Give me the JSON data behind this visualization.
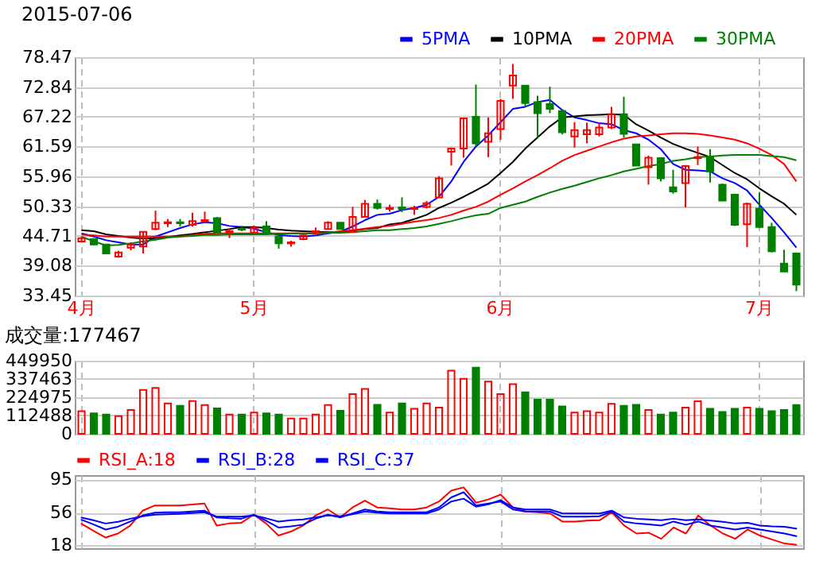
{
  "chart_data": [
    {
      "type": "candlestick",
      "title": "2015-07-06",
      "categories": [
        "4月",
        null,
        null,
        null,
        null,
        null,
        null,
        null,
        null,
        null,
        null,
        null,
        null,
        null,
        "5月",
        null,
        null,
        null,
        null,
        null,
        null,
        null,
        null,
        null,
        null,
        null,
        null,
        null,
        null,
        null,
        null,
        null,
        null,
        null,
        "6月",
        null,
        null,
        null,
        null,
        null,
        null,
        null,
        null,
        null,
        null,
        null,
        null,
        null,
        null,
        null,
        null,
        null,
        null,
        null,
        null,
        "7月",
        null,
        null,
        null
      ],
      "ohlc": [
        [
          43.64,
          44.5,
          43.5,
          44.3
        ],
        [
          44.1,
          44.3,
          43.0,
          43.1
        ],
        [
          43.1,
          43.2,
          41.3,
          41.4
        ],
        [
          40.8,
          41.9,
          40.6,
          41.6
        ],
        [
          42.5,
          43.5,
          42.0,
          43.1
        ],
        [
          42.7,
          45.6,
          41.4,
          45.5
        ],
        [
          46.0,
          49.5,
          45.8,
          47.2
        ],
        [
          47.1,
          47.9,
          46.4,
          47.3
        ],
        [
          47.3,
          47.9,
          46.5,
          47.1
        ],
        [
          46.8,
          49.1,
          46.5,
          47.5
        ],
        [
          47.5,
          49.3,
          47.2,
          47.7
        ],
        [
          48.1,
          48.3,
          45.2,
          45.4
        ],
        [
          45.4,
          46.2,
          44.3,
          45.6
        ],
        [
          46.1,
          46.6,
          45.6,
          45.9
        ],
        [
          45.3,
          46.6,
          45.1,
          46.2
        ],
        [
          46.5,
          47.5,
          45.2,
          45.4
        ],
        [
          44.6,
          44.8,
          42.3,
          43.3
        ],
        [
          43.3,
          43.8,
          42.7,
          43.5
        ],
        [
          44.1,
          45.0,
          43.9,
          44.8
        ],
        [
          45.3,
          46.3,
          45.0,
          45.6
        ],
        [
          46.0,
          47.5,
          45.9,
          47.2
        ],
        [
          47.2,
          47.3,
          45.9,
          46.0
        ],
        [
          45.5,
          50.2,
          45.4,
          48.3
        ],
        [
          48.3,
          51.5,
          48.2,
          50.8
        ],
        [
          50.8,
          51.6,
          49.7,
          50.0
        ],
        [
          49.8,
          50.6,
          49.3,
          50.0
        ],
        [
          50.1,
          52.0,
          49.2,
          49.8
        ],
        [
          49.8,
          50.4,
          48.7,
          50.0
        ],
        [
          50.2,
          51.3,
          49.9,
          50.9
        ],
        [
          52.0,
          56.0,
          51.9,
          55.6
        ],
        [
          60.6,
          61.4,
          58.0,
          61.2
        ],
        [
          61.2,
          66.9,
          59.5,
          66.9
        ],
        [
          67.2,
          73.3,
          61.6,
          62.2
        ],
        [
          62.5,
          67.1,
          59.6,
          64.1
        ],
        [
          64.9,
          70.6,
          62.9,
          70.2
        ],
        [
          73.1,
          77.2,
          70.6,
          75.0
        ],
        [
          73.1,
          73.1,
          69.1,
          69.8
        ],
        [
          70.0,
          71.2,
          63.3,
          67.9
        ],
        [
          69.6,
          72.9,
          67.9,
          68.7
        ],
        [
          68.3,
          68.5,
          63.9,
          64.3
        ],
        [
          63.5,
          66.2,
          61.4,
          64.7
        ],
        [
          63.9,
          66.1,
          62.2,
          64.7
        ],
        [
          63.9,
          66.1,
          63.5,
          65.2
        ],
        [
          65.2,
          69.1,
          64.9,
          67.7
        ],
        [
          67.7,
          71.0,
          63.3,
          64.0
        ],
        [
          62.0,
          62.1,
          57.9,
          58.0
        ],
        [
          57.7,
          59.9,
          54.4,
          59.5
        ],
        [
          59.4,
          59.5,
          55.0,
          55.6
        ],
        [
          53.9,
          57.2,
          52.7,
          53.1
        ],
        [
          54.7,
          58.1,
          50.1,
          57.9
        ],
        [
          59.4,
          61.6,
          58.1,
          59.6
        ],
        [
          59.6,
          61.1,
          54.8,
          56.9
        ],
        [
          54.4,
          54.6,
          51.3,
          51.4
        ],
        [
          52.5,
          52.7,
          46.6,
          46.8
        ],
        [
          46.9,
          51.0,
          42.6,
          50.8
        ],
        [
          49.9,
          52.9,
          46.2,
          46.4
        ],
        [
          46.4,
          47.2,
          41.6,
          41.8
        ],
        [
          39.5,
          42.1,
          37.9,
          38.0
        ],
        [
          41.4,
          41.4,
          34.3,
          35.5
        ]
      ],
      "colors": [
        "#ff0000",
        "#008000",
        "#008000",
        "#ff0000",
        "#ff0000",
        "#ff0000",
        "#ff0000",
        "#ff0000",
        "#008000",
        "#ff0000",
        "#ff0000",
        "#008000",
        "#ff0000",
        "#008000",
        "#ff0000",
        "#008000",
        "#008000",
        "#ff0000",
        "#ff0000",
        "#ff0000",
        "#ff0000",
        "#008000",
        "#ff0000",
        "#ff0000",
        "#008000",
        "#ff0000",
        "#008000",
        "#ff0000",
        "#ff0000",
        "#ff0000",
        "#ff0000",
        "#ff0000",
        "#008000",
        "#ff0000",
        "#ff0000",
        "#ff0000",
        "#008000",
        "#008000",
        "#008000",
        "#008000",
        "#ff0000",
        "#ff0000",
        "#ff0000",
        "#ff0000",
        "#008000",
        "#008000",
        "#ff0000",
        "#008000",
        "#008000",
        "#ff0000",
        "#ff0000",
        "#008000",
        "#008000",
        "#008000",
        "#ff0000",
        "#008000",
        "#008000",
        "#008000",
        "#008000"
      ],
      "series": [
        {
          "type": "line",
          "name": "5PMA",
          "color": "#0000ff",
          "values": [
            45.2,
            44.6,
            43.9,
            43.5,
            43.1,
            43.1,
            44.6,
            45.4,
            46.2,
            46.9,
            47.3,
            47.1,
            46.6,
            46.4,
            46.1,
            45.4,
            44.9,
            44.7,
            44.6,
            44.8,
            45.2,
            45.5,
            46.5,
            47.7,
            48.7,
            48.9,
            49.6,
            50.0,
            50.6,
            52.1,
            55.0,
            58.7,
            61.6,
            63.7,
            66.2,
            68.7,
            69.1,
            70.0,
            70.4,
            68.5,
            67.1,
            66.6,
            66.0,
            65.8,
            64.7,
            64.1,
            62.9,
            61.1,
            58.3,
            57.2,
            57.1,
            56.9,
            55.6,
            54.7,
            53.3,
            50.6,
            48.1,
            45.4,
            42.5
          ]
        },
        {
          "type": "line",
          "name": "10PMA",
          "color": "#000000",
          "values": [
            45.8,
            45.6,
            45.0,
            44.7,
            44.4,
            44.2,
            44.3,
            44.5,
            44.8,
            45.1,
            45.4,
            45.7,
            46.0,
            46.4,
            46.4,
            46.2,
            45.9,
            45.7,
            45.6,
            45.5,
            45.4,
            45.4,
            45.7,
            46.0,
            46.2,
            46.9,
            47.2,
            47.9,
            48.7,
            50.0,
            51.0,
            52.1,
            53.3,
            54.6,
            56.6,
            58.7,
            61.2,
            63.3,
            65.4,
            67.1,
            67.3,
            67.5,
            67.6,
            67.7,
            67.6,
            65.8,
            64.6,
            63.3,
            62.1,
            61.2,
            60.4,
            59.6,
            58.1,
            56.6,
            55.4,
            53.7,
            52.2,
            50.8,
            48.7
          ]
        },
        {
          "type": "line",
          "name": "20PMA",
          "color": "#ff0000",
          "values": [
            44.97,
            44.8,
            44.6,
            44.6,
            44.6,
            44.6,
            44.6,
            44.6,
            44.6,
            44.9,
            45.1,
            45.2,
            45.2,
            45.2,
            45.2,
            45.2,
            45.2,
            45.2,
            45.2,
            45.2,
            45.3,
            45.6,
            45.8,
            46.1,
            46.4,
            46.6,
            47.0,
            47.4,
            47.7,
            48.1,
            48.7,
            49.5,
            50.2,
            51.2,
            52.5,
            53.7,
            55.0,
            56.2,
            57.5,
            58.9,
            60.0,
            60.8,
            61.6,
            62.4,
            63.1,
            63.5,
            63.7,
            63.9,
            64.1,
            64.1,
            64.0,
            63.7,
            63.3,
            62.9,
            62.2,
            61.2,
            60.0,
            58.3,
            55.0
          ]
        },
        {
          "type": "line",
          "name": "30PMA",
          "color": "#008000",
          "values": [
            44.55,
            43.7,
            42.9,
            43.0,
            43.3,
            43.7,
            44.0,
            44.4,
            44.6,
            44.7,
            44.9,
            44.9,
            45.0,
            45.0,
            45.0,
            45.0,
            45.1,
            45.2,
            45.2,
            45.2,
            45.3,
            45.3,
            45.4,
            45.6,
            45.8,
            45.8,
            46.0,
            46.2,
            46.5,
            47.0,
            47.5,
            48.1,
            48.6,
            48.9,
            50.0,
            50.6,
            51.2,
            52.1,
            52.9,
            53.6,
            54.2,
            54.9,
            55.6,
            56.2,
            56.9,
            57.4,
            57.9,
            58.3,
            58.9,
            59.2,
            59.6,
            59.7,
            59.9,
            60.0,
            60.0,
            60.0,
            59.8,
            59.6,
            59.0
          ]
        }
      ],
      "ylim": [
        33.45,
        78.47
      ],
      "yticks": [
        33.45,
        39.08,
        44.71,
        50.33,
        55.96,
        61.59,
        67.22,
        72.84,
        78.47
      ],
      "grid": true,
      "legend": "top right",
      "tick_labels": true
    },
    {
      "type": "bar",
      "title": "成交量:177467",
      "categories": [
        null,
        null,
        null,
        null,
        null,
        null,
        null,
        null,
        null,
        null,
        null,
        null,
        null,
        null,
        null,
        null,
        null,
        null,
        null,
        null,
        null,
        null,
        null,
        null,
        null,
        null,
        null,
        null,
        null,
        null,
        null,
        null,
        null,
        null,
        null,
        null,
        null,
        null,
        null,
        null,
        null,
        null,
        null,
        null,
        null,
        null,
        null,
        null,
        null,
        null,
        null,
        null,
        null,
        null,
        null,
        null,
        null,
        null,
        null
      ],
      "values": [
        139000,
        126000,
        119000,
        109000,
        147000,
        270000,
        283000,
        187000,
        172000,
        202000,
        177000,
        157000,
        119000,
        119000,
        131000,
        126000,
        119000,
        94000,
        94000,
        119000,
        177000,
        142000,
        245000,
        276000,
        179000,
        131000,
        187000,
        154000,
        187000,
        162000,
        389000,
        339000,
        407000,
        321000,
        245000,
        306000,
        255000,
        210000,
        210000,
        169000,
        131000,
        139000,
        131000,
        185000,
        172000,
        179000,
        147000,
        119000,
        131000,
        162000,
        200000,
        154000,
        134000,
        154000,
        162000,
        154000,
        139000,
        147000,
        177467
      ],
      "colors": [
        "#ff0000",
        "#008000",
        "#008000",
        "#ff0000",
        "#ff0000",
        "#ff0000",
        "#ff0000",
        "#ff0000",
        "#008000",
        "#ff0000",
        "#ff0000",
        "#008000",
        "#ff0000",
        "#008000",
        "#ff0000",
        "#008000",
        "#008000",
        "#ff0000",
        "#ff0000",
        "#ff0000",
        "#ff0000",
        "#008000",
        "#ff0000",
        "#ff0000",
        "#008000",
        "#ff0000",
        "#008000",
        "#ff0000",
        "#ff0000",
        "#ff0000",
        "#ff0000",
        "#ff0000",
        "#008000",
        "#ff0000",
        "#ff0000",
        "#ff0000",
        "#008000",
        "#008000",
        "#008000",
        "#008000",
        "#ff0000",
        "#ff0000",
        "#ff0000",
        "#ff0000",
        "#008000",
        "#008000",
        "#ff0000",
        "#008000",
        "#008000",
        "#ff0000",
        "#ff0000",
        "#008000",
        "#008000",
        "#008000",
        "#ff0000",
        "#008000",
        "#008000",
        "#008000",
        "#008000"
      ],
      "ylim": [
        0,
        449950
      ],
      "yticks": [
        0,
        112488,
        224975,
        337463,
        449950
      ],
      "grid": true,
      "tick_labels": "y"
    },
    {
      "type": "line",
      "categories": [
        null,
        null,
        null,
        null,
        null,
        null,
        null,
        null,
        null,
        null,
        null,
        null,
        null,
        null,
        null,
        null,
        null,
        null,
        null,
        null,
        null,
        null,
        null,
        null,
        null,
        null,
        null,
        null,
        null,
        null,
        null,
        null,
        null,
        null,
        null,
        null,
        null,
        null,
        null,
        null,
        null,
        null,
        null,
        null,
        null,
        null,
        null,
        null,
        null,
        null,
        null,
        null,
        null,
        null,
        null,
        null,
        null,
        null,
        null
      ],
      "series": [
        {
          "name": "RSI_A:18",
          "color": "#ff0000",
          "values": [
            43.1,
            34.6,
            26.6,
            31.3,
            40.7,
            58.2,
            64.3,
            64.3,
            64.3,
            65.3,
            66.7,
            40.7,
            43.1,
            44.0,
            53.5,
            43.1,
            28.9,
            33.6,
            40.7,
            52.5,
            59.6,
            50.2,
            62.0,
            70.0,
            62.0,
            61.0,
            59.6,
            59.6,
            62.0,
            69.0,
            81.8,
            85.6,
            67.6,
            71.4,
            77.1,
            62.0,
            57.2,
            56.3,
            54.9,
            45.4,
            45.4,
            46.4,
            46.9,
            56.3,
            40.7,
            31.3,
            32.2,
            25.1,
            38.4,
            31.3,
            52.5,
            40.7,
            31.3,
            25.1,
            36.0,
            28.9,
            24.2,
            19.5,
            18
          ]
        },
        {
          "name": "RSI_B:28",
          "color": "#0000ff",
          "values": [
            47.8,
            42.1,
            36.0,
            39.3,
            45.4,
            52.5,
            55.8,
            56.3,
            56.3,
            57.2,
            58.2,
            50.2,
            49.2,
            48.7,
            53.5,
            46.4,
            38.4,
            39.8,
            41.7,
            48.7,
            53.5,
            50.2,
            54.9,
            59.6,
            57.2,
            56.3,
            56.3,
            56.3,
            56.3,
            62.0,
            73.8,
            79.9,
            64.3,
            66.7,
            69.0,
            59.6,
            57.2,
            57.2,
            57.2,
            51.1,
            51.1,
            51.1,
            51.6,
            57.2,
            45.4,
            43.1,
            42.1,
            40.7,
            45.4,
            41.7,
            45.4,
            40.7,
            38.4,
            36.0,
            38.4,
            36.0,
            33.6,
            31.3,
            28
          ]
        },
        {
          "name": "RSI_C:37",
          "color": "#0000ff",
          "values": [
            50.2,
            46.9,
            43.1,
            45.0,
            48.7,
            51.6,
            53.5,
            53.9,
            54.4,
            55.4,
            56.3,
            51.1,
            51.1,
            51.1,
            52.5,
            49.2,
            45.4,
            46.9,
            47.8,
            50.2,
            52.5,
            51.6,
            53.9,
            57.2,
            55.8,
            54.9,
            54.9,
            54.9,
            54.9,
            59.6,
            69.0,
            72.3,
            62.9,
            65.7,
            70.5,
            62.0,
            59.6,
            59.6,
            59.6,
            54.9,
            54.9,
            54.9,
            54.9,
            58.2,
            50.2,
            48.7,
            47.8,
            46.9,
            48.7,
            46.9,
            47.8,
            46.4,
            45.0,
            43.1,
            44.0,
            40.7,
            39.8,
            39.3,
            37
          ]
        }
      ],
      "ylim": [
        14,
        100
      ],
      "yticks": [
        18,
        56,
        95
      ],
      "grid": true,
      "legend": "top left",
      "tick_labels": "y"
    }
  ]
}
